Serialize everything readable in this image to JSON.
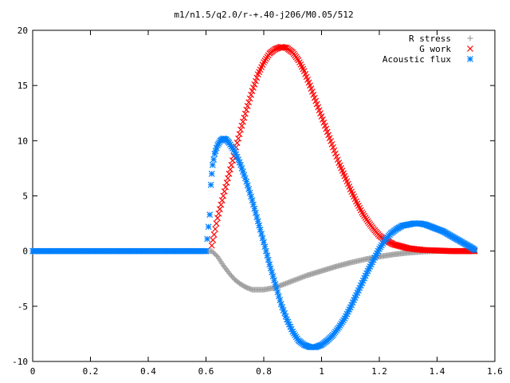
{
  "chart_data": {
    "type": "scatter",
    "title": "m1/n1.5/q2.0/r-+.40-j206/M0.05/512",
    "xlabel": "",
    "ylabel": "",
    "xlim": [
      0,
      1.6
    ],
    "ylim": [
      -10,
      20
    ],
    "grid": false,
    "legend_position": "top-right",
    "x_ticks": [
      "0",
      "0.2",
      "0.4",
      "0.6",
      "0.8",
      "1",
      "1.2",
      "1.4",
      "1.6"
    ],
    "y_ticks": [
      "-10",
      "-5",
      "0",
      "5",
      "10",
      "15",
      "20"
    ],
    "series": [
      {
        "name": "R stress",
        "marker": "+",
        "color": "#a0a0a0",
        "points": [
          [
            0,
            0
          ],
          [
            0.2,
            0
          ],
          [
            0.4,
            0
          ],
          [
            0.6,
            0
          ],
          [
            0.62,
            0
          ],
          [
            0.64,
            -0.5
          ],
          [
            0.66,
            -1.3
          ],
          [
            0.68,
            -2.0
          ],
          [
            0.7,
            -2.6
          ],
          [
            0.72,
            -3.0
          ],
          [
            0.74,
            -3.3
          ],
          [
            0.76,
            -3.5
          ],
          [
            0.78,
            -3.5
          ],
          [
            0.8,
            -3.5
          ],
          [
            0.82,
            -3.4
          ],
          [
            0.84,
            -3.3
          ],
          [
            0.86,
            -3.1
          ],
          [
            0.88,
            -2.9
          ],
          [
            0.9,
            -2.7
          ],
          [
            0.95,
            -2.2
          ],
          [
            1.0,
            -1.8
          ],
          [
            1.05,
            -1.4
          ],
          [
            1.1,
            -1.05
          ],
          [
            1.15,
            -0.75
          ],
          [
            1.2,
            -0.5
          ],
          [
            1.25,
            -0.3
          ],
          [
            1.3,
            -0.15
          ],
          [
            1.35,
            -0.05
          ],
          [
            1.4,
            0
          ],
          [
            1.45,
            0
          ],
          [
            1.5,
            0
          ],
          [
            1.53,
            0
          ]
        ]
      },
      {
        "name": "G work",
        "marker": "x",
        "color": "#ff0000",
        "points": [
          [
            0.62,
            0.5
          ],
          [
            0.64,
            3.0
          ],
          [
            0.66,
            5.0
          ],
          [
            0.68,
            7.0
          ],
          [
            0.7,
            9.0
          ],
          [
            0.72,
            11.0
          ],
          [
            0.74,
            12.8
          ],
          [
            0.76,
            14.5
          ],
          [
            0.78,
            16.0
          ],
          [
            0.8,
            17.1
          ],
          [
            0.82,
            17.9
          ],
          [
            0.84,
            18.3
          ],
          [
            0.86,
            18.5
          ],
          [
            0.88,
            18.4
          ],
          [
            0.9,
            18.0
          ],
          [
            0.92,
            17.3
          ],
          [
            0.94,
            16.3
          ],
          [
            0.96,
            15.0
          ],
          [
            0.98,
            13.6
          ],
          [
            1.0,
            12.2
          ],
          [
            1.02,
            10.8
          ],
          [
            1.04,
            9.4
          ],
          [
            1.06,
            8.0
          ],
          [
            1.08,
            6.8
          ],
          [
            1.1,
            5.6
          ],
          [
            1.12,
            4.5
          ],
          [
            1.14,
            3.5
          ],
          [
            1.16,
            2.7
          ],
          [
            1.18,
            2.0
          ],
          [
            1.2,
            1.4
          ],
          [
            1.22,
            1.0
          ],
          [
            1.25,
            0.6
          ],
          [
            1.3,
            0.25
          ],
          [
            1.35,
            0.1
          ],
          [
            1.4,
            0.05
          ],
          [
            1.45,
            0
          ],
          [
            1.5,
            0
          ],
          [
            1.53,
            0
          ]
        ]
      },
      {
        "name": "Acoustic flux",
        "marker": "*",
        "color": "#0080ff",
        "points": [
          [
            0,
            0
          ],
          [
            0.1,
            0
          ],
          [
            0.2,
            0
          ],
          [
            0.3,
            0
          ],
          [
            0.4,
            0
          ],
          [
            0.5,
            0
          ],
          [
            0.6,
            0
          ],
          [
            0.613,
            3.3
          ],
          [
            0.617,
            6.0
          ],
          [
            0.62,
            7.0
          ],
          [
            0.623,
            7.8
          ],
          [
            0.63,
            8.8
          ],
          [
            0.64,
            9.6
          ],
          [
            0.65,
            10.0
          ],
          [
            0.66,
            10.2
          ],
          [
            0.67,
            10.1
          ],
          [
            0.68,
            9.8
          ],
          [
            0.7,
            9.0
          ],
          [
            0.72,
            7.8
          ],
          [
            0.74,
            6.3
          ],
          [
            0.76,
            4.6
          ],
          [
            0.78,
            2.7
          ],
          [
            0.8,
            0.8
          ],
          [
            0.82,
            -1.2
          ],
          [
            0.84,
            -3.0
          ],
          [
            0.86,
            -4.8
          ],
          [
            0.88,
            -6.2
          ],
          [
            0.9,
            -7.3
          ],
          [
            0.92,
            -8.1
          ],
          [
            0.94,
            -8.5
          ],
          [
            0.96,
            -8.7
          ],
          [
            0.98,
            -8.7
          ],
          [
            1.0,
            -8.5
          ],
          [
            1.02,
            -8.1
          ],
          [
            1.04,
            -7.6
          ],
          [
            1.06,
            -6.9
          ],
          [
            1.08,
            -6.1
          ],
          [
            1.1,
            -5.1
          ],
          [
            1.12,
            -4.0
          ],
          [
            1.14,
            -2.9
          ],
          [
            1.16,
            -1.8
          ],
          [
            1.18,
            -0.8
          ],
          [
            1.2,
            0.2
          ],
          [
            1.22,
            1.0
          ],
          [
            1.24,
            1.6
          ],
          [
            1.26,
            2.0
          ],
          [
            1.28,
            2.3
          ],
          [
            1.3,
            2.4
          ],
          [
            1.32,
            2.5
          ],
          [
            1.34,
            2.5
          ],
          [
            1.36,
            2.4
          ],
          [
            1.38,
            2.2
          ],
          [
            1.4,
            2.0
          ],
          [
            1.42,
            1.8
          ],
          [
            1.44,
            1.5
          ],
          [
            1.46,
            1.2
          ],
          [
            1.48,
            0.9
          ],
          [
            1.5,
            0.6
          ],
          [
            1.52,
            0.3
          ],
          [
            1.53,
            0.1
          ]
        ]
      }
    ]
  },
  "colors": {
    "background": "#ffffff",
    "axes": "#000000"
  }
}
